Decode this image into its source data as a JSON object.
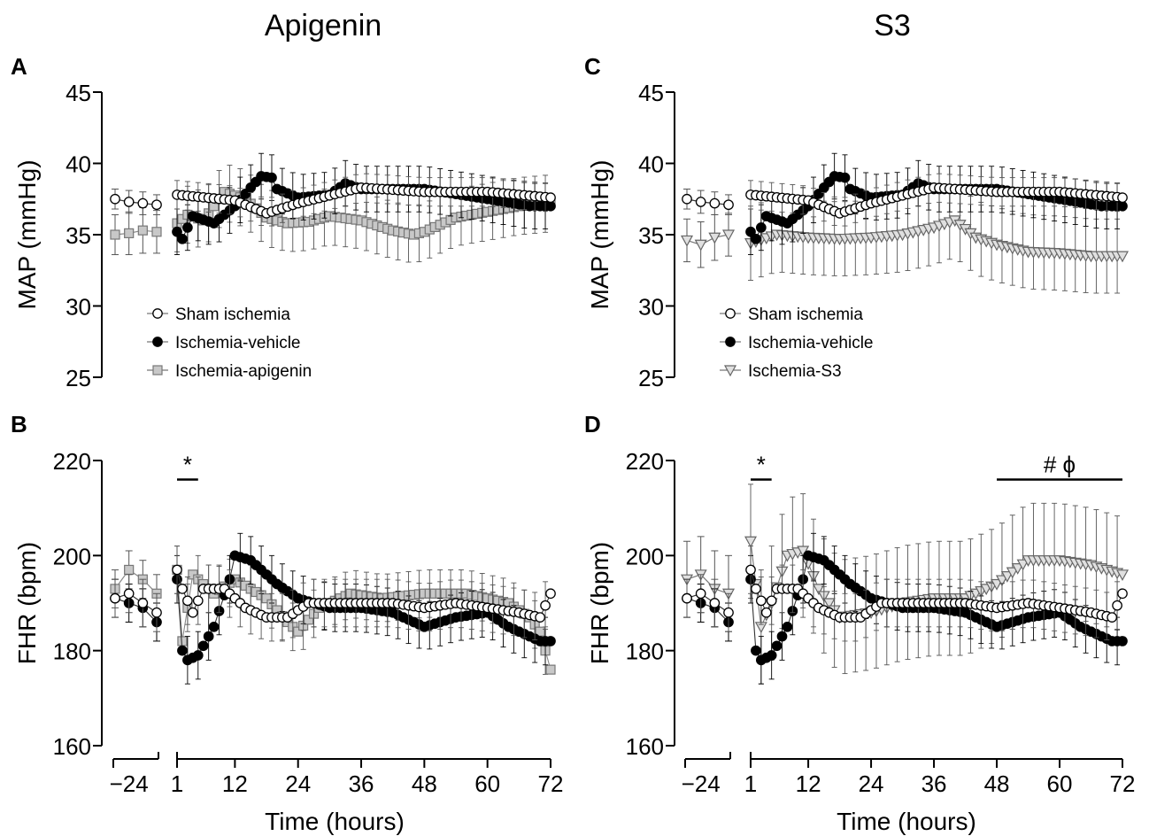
{
  "figure": {
    "column_titles": [
      "Apigenin",
      "S3"
    ],
    "panel_letters": [
      "A",
      "B",
      "C",
      "D"
    ],
    "xlabel": "Time (hours)",
    "x_ticks": [
      "−24",
      "1",
      "12",
      "24",
      "36",
      "48",
      "60",
      "72"
    ]
  },
  "chart_data": [
    {
      "panel": "A",
      "type": "scatter",
      "column": "Apigenin",
      "ylabel": "MAP (mmHg)",
      "ylim": [
        25,
        45
      ],
      "yticks": [
        25,
        30,
        35,
        40,
        45
      ],
      "x_baseline": [
        -30,
        -24,
        -18,
        -12
      ],
      "legend_position": "bottom-left",
      "series": [
        {
          "name": "Sham ischemia",
          "marker": "circle",
          "fill": "#ffffff",
          "baseline": [
            37.5,
            37.3,
            37.2,
            37.1
          ],
          "baseline_err": [
            0.7,
            0.8,
            0.8,
            0.7
          ],
          "post": [
            [
              1,
              37.8
            ],
            [
              12,
              37.4
            ],
            [
              18,
              36.5
            ],
            [
              24,
              37.2
            ],
            [
              36,
              38.3
            ],
            [
              48,
              38.0
            ],
            [
              60,
              38.0
            ],
            [
              72,
              37.6
            ]
          ],
          "err": 1.0
        },
        {
          "name": "Ischemia-vehicle",
          "marker": "circle",
          "fill": "#000000",
          "post": [
            [
              1,
              35.2
            ],
            [
              2,
              34.7
            ],
            [
              4,
              36.3
            ],
            [
              8,
              35.8
            ],
            [
              12,
              37.0
            ],
            [
              15,
              38.3
            ],
            [
              17,
              39.1
            ],
            [
              19,
              39.0
            ],
            [
              20,
              38.2
            ],
            [
              24,
              37.6
            ],
            [
              30,
              37.8
            ],
            [
              33,
              38.6
            ],
            [
              36,
              38.2
            ],
            [
              48,
              38.2
            ],
            [
              60,
              37.5
            ],
            [
              68,
              37.0
            ],
            [
              72,
              37.0
            ]
          ],
          "err": 1.6
        },
        {
          "name": "Ischemia-apigenin",
          "marker": "square",
          "fill": "#c8c8c8",
          "baseline": [
            35.0,
            35.1,
            35.3,
            35.2
          ],
          "baseline_err": [
            1.4,
            1.5,
            1.6,
            1.5
          ],
          "post": [
            [
              1,
              35.8
            ],
            [
              3,
              36.4
            ],
            [
              6,
              36.0
            ],
            [
              10,
              38.0
            ],
            [
              14,
              37.5
            ],
            [
              18,
              36.2
            ],
            [
              22,
              35.8
            ],
            [
              26,
              35.9
            ],
            [
              30,
              36.3
            ],
            [
              36,
              36.0
            ],
            [
              42,
              35.3
            ],
            [
              46,
              35.0
            ],
            [
              48,
              35.2
            ],
            [
              54,
              36.2
            ],
            [
              60,
              36.6
            ],
            [
              66,
              37.0
            ],
            [
              72,
              37.2
            ]
          ],
          "err": 2.0
        }
      ]
    },
    {
      "panel": "B",
      "type": "scatter",
      "column": "Apigenin",
      "ylabel": "FHR (bpm)",
      "ylim": [
        160,
        220
      ],
      "yticks": [
        160,
        180,
        200,
        220
      ],
      "x_baseline": [
        -30,
        -24,
        -18,
        -12
      ],
      "annotations": [
        {
          "text": "*",
          "x_from": 1,
          "x_to": 5,
          "y": 216
        }
      ],
      "series": [
        {
          "name": "Sham ischemia",
          "marker": "circle",
          "fill": "#ffffff",
          "baseline": [
            191,
            192,
            190,
            188
          ],
          "baseline_err": [
            4,
            4,
            5,
            4
          ],
          "post": [
            [
              1,
              197
            ],
            [
              2,
              193
            ],
            [
              4,
              188
            ],
            [
              6,
              193
            ],
            [
              10,
              193
            ],
            [
              14,
              189
            ],
            [
              18,
              187
            ],
            [
              22,
              187
            ],
            [
              26,
              190
            ],
            [
              30,
              190
            ],
            [
              36,
              190
            ],
            [
              42,
              190
            ],
            [
              48,
              189
            ],
            [
              54,
              190
            ],
            [
              60,
              189
            ],
            [
              66,
              188
            ],
            [
              70,
              187
            ],
            [
              72,
              192
            ]
          ],
          "err": 5
        },
        {
          "name": "Ischemia-vehicle",
          "marker": "circle",
          "fill": "#000000",
          "baseline": [
            191,
            190,
            189,
            186
          ],
          "baseline_err": [
            4,
            4,
            4,
            4
          ],
          "post": [
            [
              1,
              195
            ],
            [
              2,
              180
            ],
            [
              3,
              178
            ],
            [
              5,
              179
            ],
            [
              8,
              185
            ],
            [
              11,
              195
            ],
            [
              12,
              200
            ],
            [
              15,
              199
            ],
            [
              18,
              196
            ],
            [
              20,
              194
            ],
            [
              24,
              191
            ],
            [
              30,
              189
            ],
            [
              36,
              189
            ],
            [
              42,
              188
            ],
            [
              48,
              185
            ],
            [
              54,
              187
            ],
            [
              60,
              188
            ],
            [
              64,
              185
            ],
            [
              68,
              183
            ],
            [
              70,
              182
            ],
            [
              72,
              182
            ]
          ],
          "err": 5
        },
        {
          "name": "Ischemia-apigenin",
          "marker": "square",
          "fill": "#c8c8c8",
          "baseline": [
            193,
            197,
            195,
            192
          ],
          "baseline_err": [
            4,
            4,
            4,
            4
          ],
          "post": [
            [
              1,
              197
            ],
            [
              2,
              182
            ],
            [
              4,
              196
            ],
            [
              8,
              192
            ],
            [
              12,
              195
            ],
            [
              18,
              191
            ],
            [
              22,
              186
            ],
            [
              24,
              184
            ],
            [
              28,
              189
            ],
            [
              34,
              192
            ],
            [
              40,
              191
            ],
            [
              48,
              192
            ],
            [
              56,
              192
            ],
            [
              64,
              190
            ],
            [
              68,
              187
            ],
            [
              70,
              184
            ],
            [
              72,
              176
            ]
          ],
          "err": 5
        }
      ]
    },
    {
      "panel": "C",
      "type": "scatter",
      "column": "S3",
      "ylabel": "MAP (mmHg)",
      "ylim": [
        25,
        45
      ],
      "yticks": [
        25,
        30,
        35,
        40,
        45
      ],
      "x_baseline": [
        -30,
        -24,
        -18,
        -12
      ],
      "legend_position": "bottom-left",
      "series": [
        {
          "name": "Sham ischemia",
          "marker": "circle",
          "fill": "#ffffff",
          "baseline": [
            37.5,
            37.3,
            37.2,
            37.1
          ],
          "baseline_err": [
            0.7,
            0.8,
            0.8,
            0.7
          ],
          "post": [
            [
              1,
              37.8
            ],
            [
              12,
              37.4
            ],
            [
              18,
              36.5
            ],
            [
              24,
              37.2
            ],
            [
              36,
              38.3
            ],
            [
              48,
              38.0
            ],
            [
              60,
              38.0
            ],
            [
              72,
              37.6
            ]
          ],
          "err": 1.0
        },
        {
          "name": "Ischemia-vehicle",
          "marker": "circle",
          "fill": "#000000",
          "post": [
            [
              1,
              35.2
            ],
            [
              2,
              34.7
            ],
            [
              4,
              36.3
            ],
            [
              8,
              35.8
            ],
            [
              12,
              37.0
            ],
            [
              15,
              38.3
            ],
            [
              17,
              39.1
            ],
            [
              19,
              39.0
            ],
            [
              20,
              38.2
            ],
            [
              24,
              37.6
            ],
            [
              30,
              37.8
            ],
            [
              33,
              38.6
            ],
            [
              36,
              38.2
            ],
            [
              48,
              38.2
            ],
            [
              60,
              37.5
            ],
            [
              68,
              37.0
            ],
            [
              72,
              37.0
            ]
          ],
          "err": 1.6
        },
        {
          "name": "Ischemia-S3",
          "marker": "triangle-down",
          "fill": "#e0e0e0",
          "baseline": [
            34.6,
            34.3,
            34.8,
            35.0
          ],
          "baseline_err": [
            1.5,
            1.6,
            1.6,
            1.5
          ],
          "post": [
            [
              1,
              34.4
            ],
            [
              6,
              35.0
            ],
            [
              12,
              34.8
            ],
            [
              18,
              34.7
            ],
            [
              24,
              34.8
            ],
            [
              30,
              35.0
            ],
            [
              36,
              35.5
            ],
            [
              40,
              36.0
            ],
            [
              44,
              34.8
            ],
            [
              48,
              34.3
            ],
            [
              54,
              33.8
            ],
            [
              60,
              33.7
            ],
            [
              66,
              33.5
            ],
            [
              72,
              33.5
            ]
          ],
          "err": 2.6
        }
      ]
    },
    {
      "panel": "D",
      "type": "scatter",
      "column": "S3",
      "ylabel": "FHR (bpm)",
      "ylim": [
        160,
        220
      ],
      "yticks": [
        160,
        180,
        200,
        220
      ],
      "x_baseline": [
        -30,
        -24,
        -18,
        -12
      ],
      "annotations": [
        {
          "text": "*",
          "x_from": 1,
          "x_to": 5,
          "y": 216
        },
        {
          "text": "#  ϕ",
          "x_from": 48,
          "x_to": 72,
          "y": 216
        }
      ],
      "series": [
        {
          "name": "Sham ischemia",
          "marker": "circle",
          "fill": "#ffffff",
          "baseline": [
            191,
            192,
            190,
            188
          ],
          "baseline_err": [
            4,
            4,
            5,
            4
          ],
          "post": [
            [
              1,
              197
            ],
            [
              2,
              193
            ],
            [
              4,
              188
            ],
            [
              6,
              193
            ],
            [
              10,
              193
            ],
            [
              14,
              189
            ],
            [
              18,
              187
            ],
            [
              22,
              187
            ],
            [
              26,
              190
            ],
            [
              30,
              190
            ],
            [
              36,
              190
            ],
            [
              42,
              190
            ],
            [
              48,
              189
            ],
            [
              54,
              190
            ],
            [
              60,
              189
            ],
            [
              66,
              188
            ],
            [
              70,
              187
            ],
            [
              72,
              192
            ]
          ],
          "err": 5
        },
        {
          "name": "Ischemia-vehicle",
          "marker": "circle",
          "fill": "#000000",
          "baseline": [
            191,
            190,
            189,
            186
          ],
          "baseline_err": [
            4,
            4,
            4,
            4
          ],
          "post": [
            [
              1,
              195
            ],
            [
              2,
              180
            ],
            [
              3,
              178
            ],
            [
              5,
              179
            ],
            [
              8,
              185
            ],
            [
              11,
              195
            ],
            [
              12,
              200
            ],
            [
              15,
              199
            ],
            [
              18,
              196
            ],
            [
              20,
              194
            ],
            [
              24,
              191
            ],
            [
              30,
              189
            ],
            [
              36,
              189
            ],
            [
              42,
              188
            ],
            [
              48,
              185
            ],
            [
              54,
              187
            ],
            [
              60,
              188
            ],
            [
              64,
              185
            ],
            [
              68,
              183
            ],
            [
              70,
              182
            ],
            [
              72,
              182
            ]
          ],
          "err": 5
        },
        {
          "name": "Ischemia-S3",
          "marker": "triangle-down",
          "fill": "#e0e0e0",
          "baseline": [
            195,
            196,
            193,
            192
          ],
          "baseline_err": [
            8,
            8,
            8,
            8
          ],
          "post": [
            [
              1,
              203
            ],
            [
              3,
              185
            ],
            [
              5,
              190
            ],
            [
              8,
              200
            ],
            [
              11,
              201
            ],
            [
              14,
              193
            ],
            [
              18,
              187
            ],
            [
              24,
              188
            ],
            [
              30,
              190
            ],
            [
              36,
              191
            ],
            [
              42,
              191
            ],
            [
              48,
              194
            ],
            [
              54,
              199
            ],
            [
              60,
              199
            ],
            [
              66,
              198
            ],
            [
              72,
              196
            ]
          ],
          "err": 12
        }
      ]
    }
  ]
}
